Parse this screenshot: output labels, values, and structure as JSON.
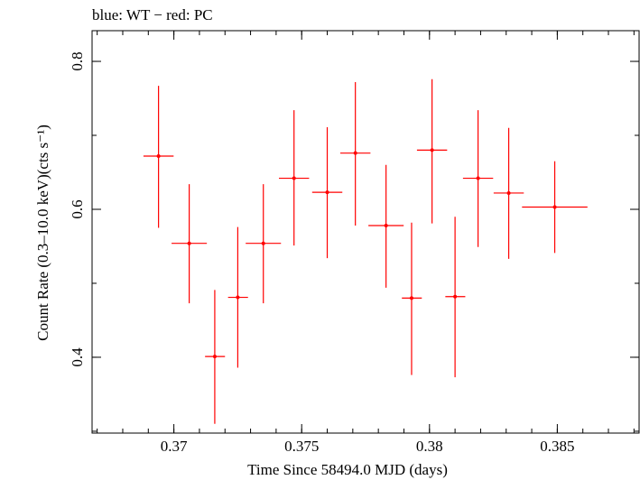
{
  "chart_data": {
    "type": "scatter",
    "title": "blue: WT − red: PC",
    "xlabel": "Time Since 58494.0 MJD (days)",
    "ylabel": "Count Rate (0.3–10.0 keV)(cts s⁻¹)",
    "xlim": [
      0.3668,
      0.3882
    ],
    "ylim": [
      0.2975,
      0.8415
    ],
    "x_major_ticks": [
      0.37,
      0.375,
      0.38,
      0.385
    ],
    "x_tick_labels": [
      "0.37",
      "0.375",
      "0.38",
      "0.385"
    ],
    "x_minor_step": 0.001,
    "y_major_ticks": [
      0.4,
      0.6,
      0.8
    ],
    "y_tick_labels": [
      "0.4",
      "0.6",
      "0.8"
    ],
    "y_minor_step": 0.1,
    "grid": false,
    "series": [
      {
        "name": "PC",
        "color": "#ff0000",
        "points": [
          {
            "x": 0.3694,
            "xerr": [
              0.00059,
              0.00059
            ],
            "y": 0.672,
            "yerr": [
              0.097,
              0.095
            ]
          },
          {
            "x": 0.3706,
            "xerr": [
              0.00069,
              0.00069
            ],
            "y": 0.554,
            "yerr": [
              0.081,
              0.08
            ]
          },
          {
            "x": 0.3716,
            "xerr": [
              0.00038,
              0.0004
            ],
            "y": 0.401,
            "yerr": [
              0.091,
              0.09
            ]
          },
          {
            "x": 0.3725,
            "xerr": [
              0.00038,
              0.0004
            ],
            "y": 0.481,
            "yerr": [
              0.095,
              0.095
            ]
          },
          {
            "x": 0.3735,
            "xerr": [
              0.00069,
              0.00069
            ],
            "y": 0.554,
            "yerr": [
              0.081,
              0.08
            ]
          },
          {
            "x": 0.3747,
            "xerr": [
              0.00059,
              0.00059
            ],
            "y": 0.642,
            "yerr": [
              0.091,
              0.092
            ]
          },
          {
            "x": 0.376,
            "xerr": [
              0.00059,
              0.00059
            ],
            "y": 0.623,
            "yerr": [
              0.089,
              0.088
            ]
          },
          {
            "x": 0.3771,
            "xerr": [
              0.00059,
              0.00059
            ],
            "y": 0.676,
            "yerr": [
              0.098,
              0.096
            ]
          },
          {
            "x": 0.3783,
            "xerr": [
              0.00069,
              0.00069
            ],
            "y": 0.578,
            "yerr": [
              0.084,
              0.082
            ]
          },
          {
            "x": 0.3793,
            "xerr": [
              0.00038,
              0.0004
            ],
            "y": 0.48,
            "yerr": [
              0.104,
              0.102
            ]
          },
          {
            "x": 0.3801,
            "xerr": [
              0.00059,
              0.00059
            ],
            "y": 0.68,
            "yerr": [
              0.099,
              0.096
            ]
          },
          {
            "x": 0.381,
            "xerr": [
              0.00038,
              0.0004
            ],
            "y": 0.482,
            "yerr": [
              0.109,
              0.108
            ]
          },
          {
            "x": 0.3819,
            "xerr": [
              0.00059,
              0.00059
            ],
            "y": 0.642,
            "yerr": [
              0.093,
              0.092
            ]
          },
          {
            "x": 0.3831,
            "xerr": [
              0.00059,
              0.00059
            ],
            "y": 0.622,
            "yerr": [
              0.089,
              0.088
            ]
          },
          {
            "x": 0.3849,
            "xerr": [
              0.00128,
              0.00128
            ],
            "y": 0.603,
            "yerr": [
              0.062,
              0.062
            ]
          }
        ]
      }
    ]
  }
}
